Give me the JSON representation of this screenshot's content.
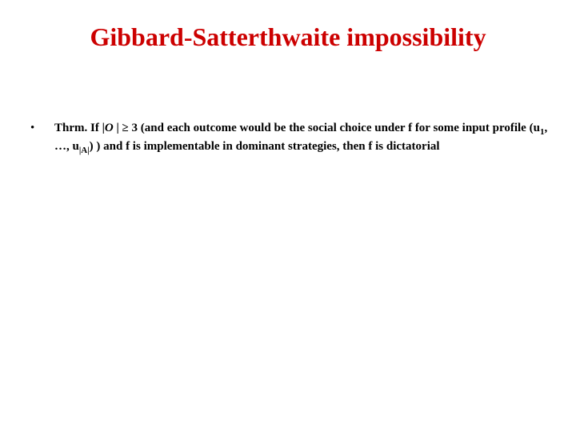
{
  "slide": {
    "title": "Gibbard-Satterthwaite impossibility",
    "title_color": "#cc0000",
    "title_fontsize": 32,
    "background_color": "#ffffff",
    "bullet": {
      "marker": "•",
      "lead": "Thrm.  If |",
      "O": "O",
      "after_O": " | ≥ 3  (and each outcome would be the social choice under f  for some input profile (u",
      "sub1": "1",
      "mid": ", …, u",
      "subA": "|A|",
      "after_sub": ") )  and f  is implementable in dominant strategies, then f is dictatorial",
      "text_color": "#000000",
      "fontsize": 15
    }
  }
}
